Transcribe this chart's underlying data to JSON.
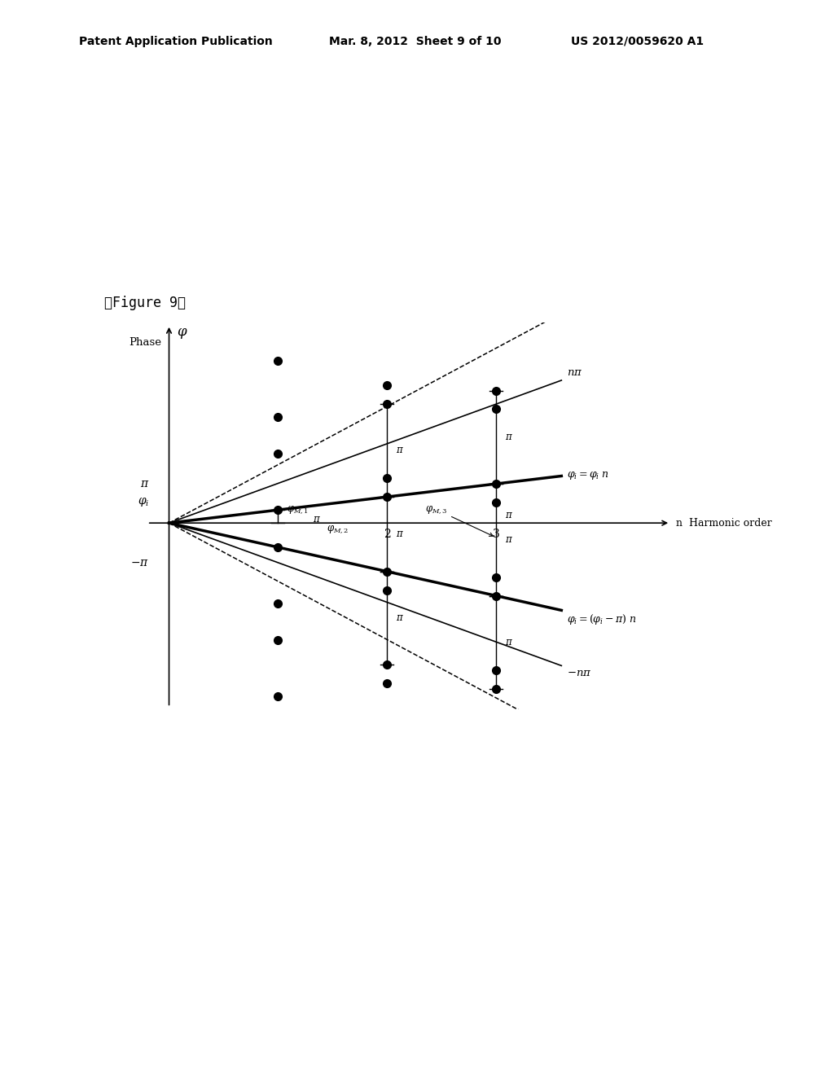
{
  "header_left": "Patent Application Publication",
  "header_mid": "Mar. 8, 2012  Sheet 9 of 10",
  "header_right": "US 2012/0059620 A1",
  "figure_label": "【Figure 9】",
  "background_color": "#ffffff",
  "slope_phi": 0.28,
  "slope_phi_mpi": -0.52,
  "slope_npi": 0.85,
  "slope_neg_npi": -0.85,
  "slope_extra1": 1.25,
  "slope_extra2": -1.25,
  "xmax": 3.6,
  "ymax": 3.8,
  "ymin": -3.8,
  "wrap": 2.0,
  "dot_ms": 7
}
